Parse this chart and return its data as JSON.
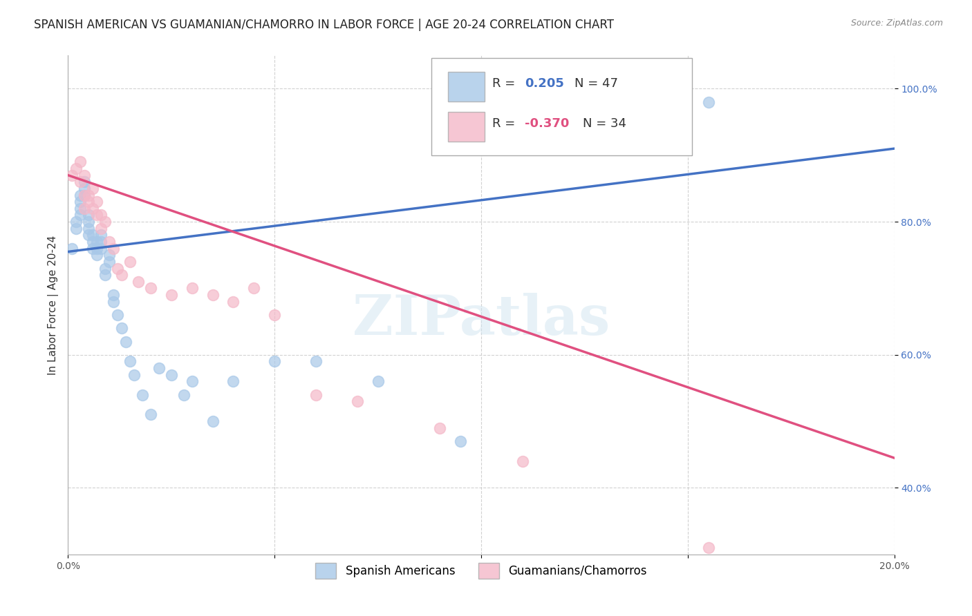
{
  "title": "SPANISH AMERICAN VS GUAMANIAN/CHAMORRO IN LABOR FORCE | AGE 20-24 CORRELATION CHART",
  "source": "Source: ZipAtlas.com",
  "ylabel": "In Labor Force | Age 20-24",
  "xlim": [
    0.0,
    0.2
  ],
  "ylim": [
    0.3,
    1.05
  ],
  "y_ticks": [
    0.4,
    0.6,
    0.8,
    1.0
  ],
  "y_tick_labels": [
    "40.0%",
    "60.0%",
    "80.0%",
    "100.0%"
  ],
  "blue_R": 0.205,
  "blue_N": 47,
  "pink_R": -0.37,
  "pink_N": 34,
  "legend_label_blue": "Spanish Americans",
  "legend_label_pink": "Guamanians/Chamorros",
  "blue_color": "#a8c8e8",
  "pink_color": "#f4b8c8",
  "blue_line_color": "#4472c4",
  "pink_line_color": "#e05080",
  "blue_R_color": "#4472c4",
  "pink_R_color": "#e05080",
  "watermark": "ZIPatlas",
  "blue_line_y0": 0.755,
  "blue_line_y1": 0.91,
  "pink_line_y0": 0.87,
  "pink_line_y1": 0.445,
  "blue_scatter_x": [
    0.001,
    0.002,
    0.002,
    0.003,
    0.003,
    0.003,
    0.003,
    0.004,
    0.004,
    0.004,
    0.005,
    0.005,
    0.005,
    0.005,
    0.006,
    0.006,
    0.006,
    0.007,
    0.007,
    0.007,
    0.008,
    0.008,
    0.008,
    0.009,
    0.009,
    0.01,
    0.01,
    0.011,
    0.011,
    0.012,
    0.013,
    0.014,
    0.015,
    0.016,
    0.018,
    0.02,
    0.022,
    0.025,
    0.028,
    0.03,
    0.035,
    0.04,
    0.05,
    0.06,
    0.075,
    0.095,
    0.155
  ],
  "blue_scatter_y": [
    0.76,
    0.79,
    0.8,
    0.81,
    0.82,
    0.83,
    0.84,
    0.84,
    0.85,
    0.86,
    0.78,
    0.79,
    0.8,
    0.81,
    0.76,
    0.77,
    0.78,
    0.75,
    0.76,
    0.77,
    0.76,
    0.77,
    0.78,
    0.72,
    0.73,
    0.74,
    0.75,
    0.68,
    0.69,
    0.66,
    0.64,
    0.62,
    0.59,
    0.57,
    0.54,
    0.51,
    0.58,
    0.57,
    0.54,
    0.56,
    0.5,
    0.56,
    0.59,
    0.59,
    0.56,
    0.47,
    0.98
  ],
  "pink_scatter_x": [
    0.001,
    0.002,
    0.003,
    0.003,
    0.004,
    0.004,
    0.004,
    0.005,
    0.005,
    0.006,
    0.006,
    0.007,
    0.007,
    0.008,
    0.008,
    0.009,
    0.01,
    0.011,
    0.012,
    0.013,
    0.015,
    0.017,
    0.02,
    0.025,
    0.03,
    0.035,
    0.04,
    0.045,
    0.05,
    0.06,
    0.07,
    0.09,
    0.11,
    0.155
  ],
  "pink_scatter_y": [
    0.87,
    0.88,
    0.89,
    0.86,
    0.87,
    0.84,
    0.82,
    0.84,
    0.83,
    0.85,
    0.82,
    0.81,
    0.83,
    0.79,
    0.81,
    0.8,
    0.77,
    0.76,
    0.73,
    0.72,
    0.74,
    0.71,
    0.7,
    0.69,
    0.7,
    0.69,
    0.68,
    0.7,
    0.66,
    0.54,
    0.53,
    0.49,
    0.44,
    0.31
  ],
  "background_color": "#ffffff",
  "grid_color": "#cccccc"
}
